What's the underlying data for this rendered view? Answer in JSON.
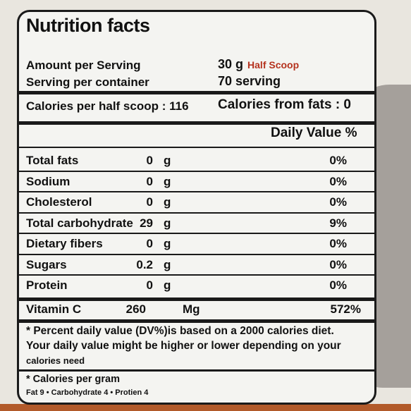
{
  "title": "Nutrition facts",
  "header": {
    "amount_label": "Amount per Serving",
    "amount_value": "30 g",
    "amount_note": "Half Scoop",
    "serving_label": "Serving per container",
    "serving_value": "70 serving"
  },
  "calories": {
    "per_half_scoop": "Calories per half scoop : 116",
    "from_fats": "Calories from fats : 0"
  },
  "daily_value_header": "Daily Value %",
  "nutrients": [
    {
      "name": "Total fats",
      "amount": "0",
      "unit": "g",
      "dv": "0%"
    },
    {
      "name": "Sodium",
      "amount": "0",
      "unit": "g",
      "dv": "0%"
    },
    {
      "name": "Cholesterol",
      "amount": "0",
      "unit": "g",
      "dv": "0%"
    },
    {
      "name": "Total carbohydrate",
      "amount": "29",
      "unit": "g",
      "dv": "9%"
    },
    {
      "name": "Dietary fibers",
      "amount": "0",
      "unit": "g",
      "dv": "0%"
    },
    {
      "name": "Sugars",
      "amount": "0.2",
      "unit": "g",
      "dv": "0%"
    },
    {
      "name": "Protein",
      "amount": "0",
      "unit": "g",
      "dv": "0%"
    }
  ],
  "vitamin": {
    "name": "Vitamin C",
    "amount": "260",
    "unit": "Mg",
    "dv": "572%"
  },
  "footnote": {
    "line1": "* Percent daily value (DV%)is based on a 2000 calories diet.",
    "line2": "Your daily value might be higher or lower depending on your",
    "line3": "calories need"
  },
  "calories_per_gram": {
    "title": "* Calories per gram",
    "detail": "Fat 9 • Carbohydrate 4 • Protien 4"
  }
}
